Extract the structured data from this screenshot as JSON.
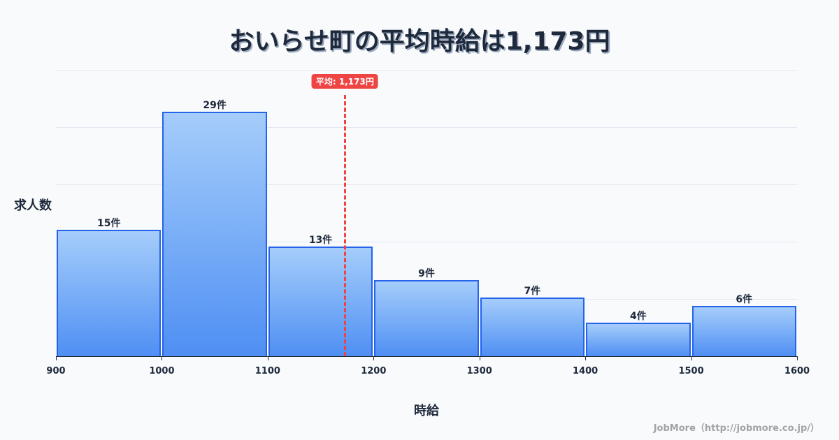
{
  "title": "おいらせ町の平均時給は1,173円",
  "ylabel": "求人数",
  "xlabel": "時給",
  "credit": "JobMore（http://jobmore.co.jp/）",
  "mean_badge": "平均: 1,173円",
  "colors": {
    "bar_border": "#2563eb",
    "bar_top": "#a5cdfb",
    "bar_bottom": "#4f8ff3",
    "mean": "#ef4444",
    "text": "#1e293b"
  },
  "chart_data": {
    "type": "bar",
    "title": "おいらせ町の平均時給は1,173円",
    "xlabel": "時給",
    "ylabel": "求人数",
    "bins": [
      [
        900,
        1000
      ],
      [
        1000,
        1100
      ],
      [
        1100,
        1200
      ],
      [
        1200,
        1300
      ],
      [
        1300,
        1400
      ],
      [
        1400,
        1500
      ],
      [
        1500,
        1600
      ]
    ],
    "categories": [
      "900-1000",
      "1000-1100",
      "1100-1200",
      "1200-1300",
      "1300-1400",
      "1400-1500",
      "1500-1600"
    ],
    "values": [
      15,
      29,
      13,
      9,
      7,
      4,
      6
    ],
    "value_labels": [
      "15件",
      "29件",
      "13件",
      "9件",
      "7件",
      "4件",
      "6件"
    ],
    "x_ticks": [
      "900",
      "1000",
      "1100",
      "1200",
      "1300",
      "1400",
      "1500",
      "1600"
    ],
    "xlim": [
      900,
      1600
    ],
    "ylim": [
      0,
      34
    ],
    "mean": 1173,
    "mean_label": "平均: 1,173円",
    "grid": true
  }
}
